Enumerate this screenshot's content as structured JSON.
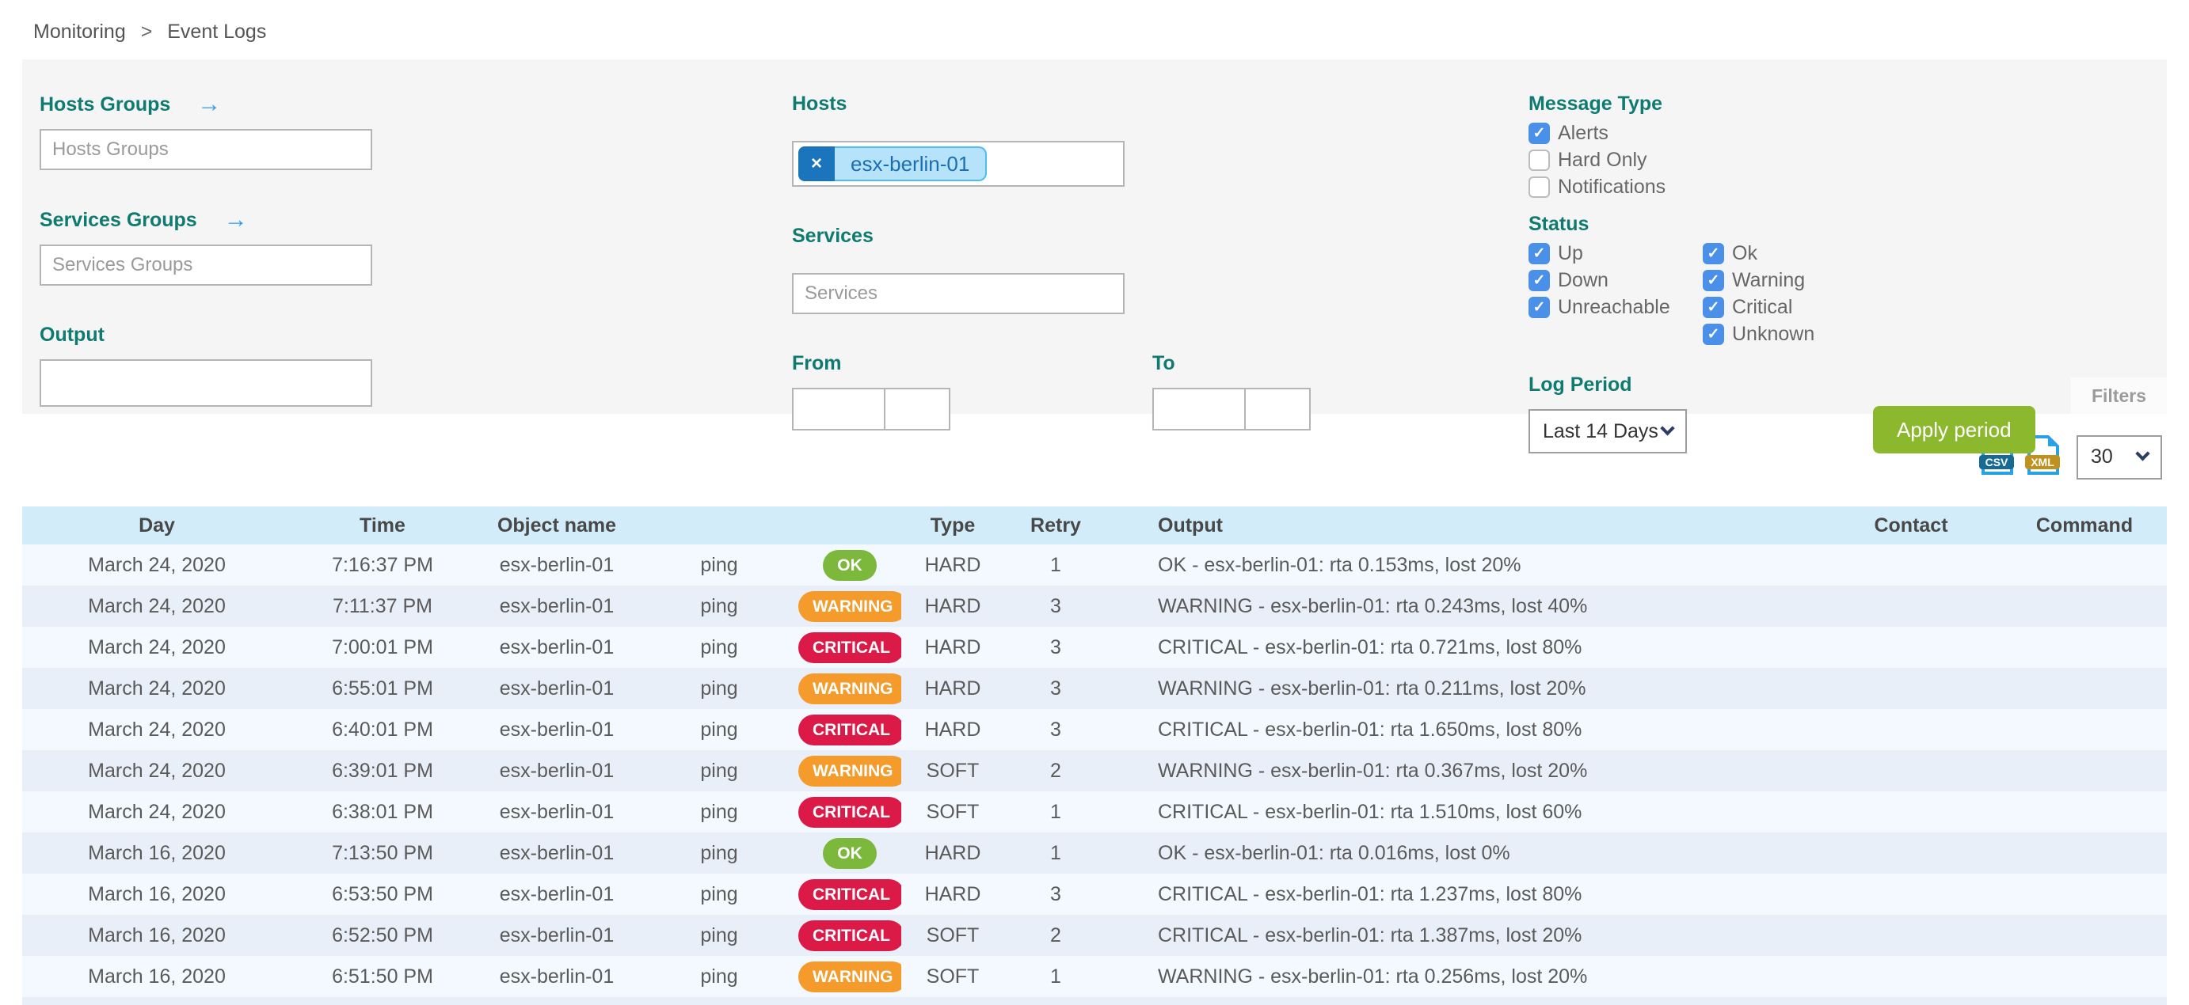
{
  "breadcrumb": {
    "items": [
      "Monitoring",
      "Event Logs"
    ],
    "separator": ">"
  },
  "filters": {
    "hosts_groups": {
      "label": "Hosts Groups",
      "placeholder": "Hosts Groups"
    },
    "services_groups": {
      "label": "Services Groups",
      "placeholder": "Services Groups"
    },
    "output": {
      "label": "Output",
      "value": ""
    },
    "hosts": {
      "label": "Hosts",
      "chips": [
        "esx-berlin-01"
      ],
      "remove_glyph": "×"
    },
    "services": {
      "label": "Services",
      "placeholder": "Services"
    },
    "from": {
      "label": "From"
    },
    "to": {
      "label": "To"
    },
    "message_type": {
      "label": "Message Type",
      "options": [
        {
          "label": "Alerts",
          "checked": true
        },
        {
          "label": "Hard Only",
          "checked": false
        },
        {
          "label": "Notifications",
          "checked": false
        }
      ]
    },
    "status": {
      "label": "Status",
      "host_options": [
        {
          "label": "Up",
          "checked": true
        },
        {
          "label": "Down",
          "checked": true
        },
        {
          "label": "Unreachable",
          "checked": true
        }
      ],
      "service_options": [
        {
          "label": "Ok",
          "checked": true
        },
        {
          "label": "Warning",
          "checked": true
        },
        {
          "label": "Critical",
          "checked": true
        },
        {
          "label": "Unknown",
          "checked": true
        }
      ]
    },
    "log_period": {
      "label": "Log Period",
      "selected": "Last 14 Days"
    },
    "apply_button": "Apply period",
    "filters_tab": "Filters"
  },
  "toolbar": {
    "export": [
      "CSV",
      "XML"
    ],
    "page_size": "30"
  },
  "table": {
    "headers": [
      "Day",
      "Time",
      "Object name",
      "",
      "",
      "Type",
      "Retry",
      "Output",
      "Contact",
      "Command"
    ],
    "rows": [
      {
        "day": "March 24, 2020",
        "time": "7:16:37 PM",
        "object": "esx-berlin-01",
        "service": "ping",
        "status": "OK",
        "type": "HARD",
        "retry": "1",
        "output": "OK - esx-berlin-01: rta 0.153ms, lost 20%",
        "contact": "",
        "command": ""
      },
      {
        "day": "March 24, 2020",
        "time": "7:11:37 PM",
        "object": "esx-berlin-01",
        "service": "ping",
        "status": "WARNING",
        "type": "HARD",
        "retry": "3",
        "output": "WARNING - esx-berlin-01: rta 0.243ms, lost 40%",
        "contact": "",
        "command": ""
      },
      {
        "day": "March 24, 2020",
        "time": "7:00:01 PM",
        "object": "esx-berlin-01",
        "service": "ping",
        "status": "CRITICAL",
        "type": "HARD",
        "retry": "3",
        "output": "CRITICAL - esx-berlin-01: rta 0.721ms, lost 80%",
        "contact": "",
        "command": ""
      },
      {
        "day": "March 24, 2020",
        "time": "6:55:01 PM",
        "object": "esx-berlin-01",
        "service": "ping",
        "status": "WARNING",
        "type": "HARD",
        "retry": "3",
        "output": "WARNING - esx-berlin-01: rta 0.211ms, lost 20%",
        "contact": "",
        "command": ""
      },
      {
        "day": "March 24, 2020",
        "time": "6:40:01 PM",
        "object": "esx-berlin-01",
        "service": "ping",
        "status": "CRITICAL",
        "type": "HARD",
        "retry": "3",
        "output": "CRITICAL - esx-berlin-01: rta 1.650ms, lost 80%",
        "contact": "",
        "command": ""
      },
      {
        "day": "March 24, 2020",
        "time": "6:39:01 PM",
        "object": "esx-berlin-01",
        "service": "ping",
        "status": "WARNING",
        "type": "SOFT",
        "retry": "2",
        "output": "WARNING - esx-berlin-01: rta 0.367ms, lost 20%",
        "contact": "",
        "command": ""
      },
      {
        "day": "March 24, 2020",
        "time": "6:38:01 PM",
        "object": "esx-berlin-01",
        "service": "ping",
        "status": "CRITICAL",
        "type": "SOFT",
        "retry": "1",
        "output": "CRITICAL - esx-berlin-01: rta 1.510ms, lost 60%",
        "contact": "",
        "command": ""
      },
      {
        "day": "March 16, 2020",
        "time": "7:13:50 PM",
        "object": "esx-berlin-01",
        "service": "ping",
        "status": "OK",
        "type": "HARD",
        "retry": "1",
        "output": "OK - esx-berlin-01: rta 0.016ms, lost 0%",
        "contact": "",
        "command": ""
      },
      {
        "day": "March 16, 2020",
        "time": "6:53:50 PM",
        "object": "esx-berlin-01",
        "service": "ping",
        "status": "CRITICAL",
        "type": "HARD",
        "retry": "3",
        "output": "CRITICAL - esx-berlin-01: rta 1.237ms, lost 80%",
        "contact": "",
        "command": ""
      },
      {
        "day": "March 16, 2020",
        "time": "6:52:50 PM",
        "object": "esx-berlin-01",
        "service": "ping",
        "status": "CRITICAL",
        "type": "SOFT",
        "retry": "2",
        "output": "CRITICAL - esx-berlin-01: rta 1.387ms, lost 20%",
        "contact": "",
        "command": ""
      },
      {
        "day": "March 16, 2020",
        "time": "6:51:50 PM",
        "object": "esx-berlin-01",
        "service": "ping",
        "status": "WARNING",
        "type": "SOFT",
        "retry": "1",
        "output": "WARNING - esx-berlin-01: rta 0.256ms, lost 20%",
        "contact": "",
        "command": ""
      }
    ]
  },
  "colors": {
    "label_teal": "#0f7b70",
    "arrow_blue": "#2e9df7",
    "checkbox_blue": "#4a90e8",
    "chip_bg": "#b6e3f9",
    "chip_border": "#4cbef0",
    "chip_remove_bg": "#1b75bc",
    "apply_green": "#8cb82e",
    "table_header_bg": "#d2ecf9",
    "row_odd": "#f3f9fe",
    "row_even": "#e9eff9",
    "status": {
      "OK": "#7cb83b",
      "WARNING": "#f49b2c",
      "CRITICAL": "#dc1a47"
    },
    "csv_banner": "#176b93",
    "xml_banner": "#c1911d",
    "file_icon_blue": "#2aa0e5"
  }
}
